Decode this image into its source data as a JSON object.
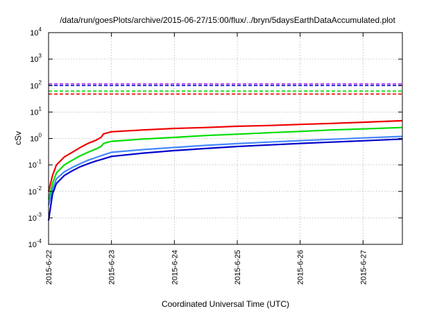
{
  "chart_data": {
    "type": "line",
    "title": "/data/run/goesPlots/archive/2015-06-27/15:00/flux/../bryn/5daysEarthDataAccumulated.plot",
    "xlabel": "Coordinated Universal Time (UTC)",
    "ylabel": "cSv",
    "y_scale": "log",
    "ylim": [
      0.0001,
      10000
    ],
    "xlim": [
      "2015-06-22 00:00",
      "2015-06-27 15:00"
    ],
    "grid": true,
    "x_ticks": [
      "2015-6-22",
      "2015-6-23",
      "2015-6-24",
      "2015-6-25",
      "2015-6-26",
      "2015-6-27"
    ],
    "y_ticks": [
      {
        "base": "10",
        "exp": "-4",
        "value": 0.0001
      },
      {
        "base": "10",
        "exp": "-3",
        "value": 0.001
      },
      {
        "base": "10",
        "exp": "-2",
        "value": 0.01
      },
      {
        "base": "10",
        "exp": "-1",
        "value": 0.1
      },
      {
        "base": "10",
        "exp": "0",
        "value": 1
      },
      {
        "base": "10",
        "exp": "1",
        "value": 10
      },
      {
        "base": "10",
        "exp": "2",
        "value": 100
      },
      {
        "base": "10",
        "exp": "3",
        "value": 1000
      },
      {
        "base": "10",
        "exp": "4",
        "value": 10000
      }
    ],
    "reference_lines": [
      {
        "color": "#a020f0",
        "y": 115
      },
      {
        "color": "#0000cc",
        "y": 100
      },
      {
        "color": "#00dd00",
        "y": 62
      },
      {
        "color": "#ee0000",
        "y": 48
      }
    ],
    "series": [
      {
        "color": "#ee0000",
        "x": [
          "2015-06-22 00:00",
          "2015-06-22 01:30",
          "2015-06-22 03:00",
          "2015-06-22 06:00",
          "2015-06-22 09:00",
          "2015-06-22 12:00",
          "2015-06-22 15:00",
          "2015-06-22 18:00",
          "2015-06-22 20:00",
          "2015-06-22 21:00",
          "2015-06-23 00:00",
          "2015-06-23 12:00",
          "2015-06-24 00:00",
          "2015-06-24 12:00",
          "2015-06-25 00:00",
          "2015-06-25 12:00",
          "2015-06-26 00:00",
          "2015-06-26 12:00",
          "2015-06-27 00:00",
          "2015-06-27 15:00"
        ],
        "values": [
          0.01,
          0.04,
          0.1,
          0.2,
          0.3,
          0.45,
          0.65,
          0.85,
          1.1,
          1.5,
          1.8,
          2.1,
          2.4,
          2.6,
          2.9,
          3.1,
          3.4,
          3.7,
          4.1,
          4.7
        ]
      },
      {
        "color": "#00dd00",
        "x": [
          "2015-06-22 00:00",
          "2015-06-22 01:30",
          "2015-06-22 03:00",
          "2015-06-22 06:00",
          "2015-06-22 09:00",
          "2015-06-22 12:00",
          "2015-06-22 15:00",
          "2015-06-22 18:00",
          "2015-06-22 20:00",
          "2015-06-22 21:00",
          "2015-06-23 00:00",
          "2015-06-23 12:00",
          "2015-06-24 00:00",
          "2015-06-24 12:00",
          "2015-06-25 00:00",
          "2015-06-25 12:00",
          "2015-06-26 00:00",
          "2015-06-26 12:00",
          "2015-06-27 00:00",
          "2015-06-27 15:00"
        ],
        "values": [
          0.005,
          0.02,
          0.05,
          0.1,
          0.15,
          0.22,
          0.3,
          0.4,
          0.5,
          0.65,
          0.78,
          0.95,
          1.1,
          1.3,
          1.45,
          1.65,
          1.85,
          2.1,
          2.3,
          2.6
        ]
      },
      {
        "color": "#4488ff",
        "x": [
          "2015-06-22 00:00",
          "2015-06-22 01:30",
          "2015-06-22 03:00",
          "2015-06-22 06:00",
          "2015-06-22 09:00",
          "2015-06-22 12:00",
          "2015-06-22 15:00",
          "2015-06-22 18:00",
          "2015-06-22 21:00",
          "2015-06-23 00:00",
          "2015-06-23 12:00",
          "2015-06-24 00:00",
          "2015-06-24 12:00",
          "2015-06-25 00:00",
          "2015-06-25 12:00",
          "2015-06-26 00:00",
          "2015-06-26 12:00",
          "2015-06-27 00:00",
          "2015-06-27 15:00"
        ],
        "values": [
          0.003,
          0.012,
          0.03,
          0.055,
          0.08,
          0.11,
          0.15,
          0.19,
          0.24,
          0.3,
          0.38,
          0.46,
          0.55,
          0.64,
          0.73,
          0.83,
          0.93,
          1.05,
          1.2
        ]
      },
      {
        "color": "#0000cc",
        "x": [
          "2015-06-22 00:00",
          "2015-06-22 01:30",
          "2015-06-22 03:00",
          "2015-06-22 06:00",
          "2015-06-22 09:00",
          "2015-06-22 12:00",
          "2015-06-22 15:00",
          "2015-06-22 18:00",
          "2015-06-22 21:00",
          "2015-06-23 00:00",
          "2015-06-23 12:00",
          "2015-06-24 00:00",
          "2015-06-24 12:00",
          "2015-06-25 00:00",
          "2015-06-25 12:00",
          "2015-06-26 00:00",
          "2015-06-26 12:00",
          "2015-06-27 00:00",
          "2015-06-27 15:00"
        ],
        "values": [
          0.0008,
          0.008,
          0.02,
          0.04,
          0.06,
          0.085,
          0.11,
          0.14,
          0.17,
          0.21,
          0.28,
          0.35,
          0.42,
          0.5,
          0.57,
          0.65,
          0.73,
          0.82,
          0.95
        ]
      }
    ]
  }
}
